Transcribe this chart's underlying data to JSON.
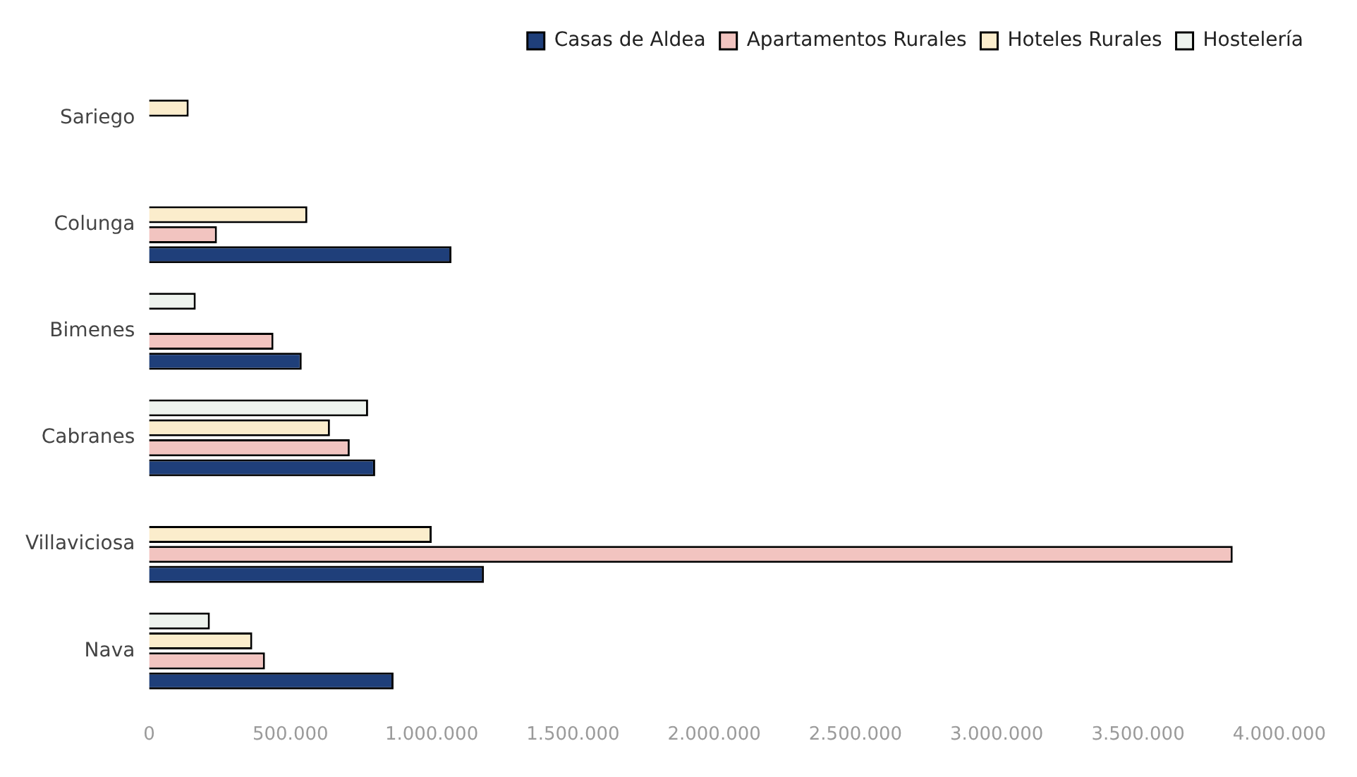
{
  "chart_data": {
    "type": "bar",
    "orientation": "horizontal",
    "categories": [
      "Sariego",
      "Colunga",
      "Bimenes",
      "Cabranes",
      "Villaviciosa",
      "Nava"
    ],
    "series": [
      {
        "name": "Casas de Aldea",
        "color": "#1f3f7a",
        "values": [
          0,
          1070000,
          540000,
          800000,
          1185000,
          865000
        ]
      },
      {
        "name": "Apartamentos Rurales",
        "color": "#f2c4c0",
        "values": [
          0,
          240000,
          440000,
          710000,
          3835000,
          410000
        ]
      },
      {
        "name": "Hoteles Rurales",
        "color": "#fbedcc",
        "values": [
          140000,
          560000,
          0,
          640000,
          1000000,
          365000
        ]
      },
      {
        "name": "Hostelería",
        "color": "#eef3ee",
        "values": [
          0,
          0,
          165000,
          775000,
          0,
          215000
        ]
      }
    ],
    "xlim": [
      0,
      4000000
    ],
    "xticks": [
      0,
      {
        "value": 500000,
        "label": "500.000"
      },
      {
        "value": 1000000,
        "label": "1.000.000"
      },
      {
        "value": 1500000,
        "label": "1.500.000"
      },
      {
        "value": 2000000,
        "label": "2.000.000"
      },
      {
        "value": 2500000,
        "label": "2.500.000"
      },
      {
        "value": 3000000,
        "label": "3.000.000"
      },
      {
        "value": 3500000,
        "label": "3.500.000"
      },
      {
        "value": 4000000,
        "label": "4.000.000"
      }
    ],
    "grid": false,
    "legend": "top right"
  }
}
